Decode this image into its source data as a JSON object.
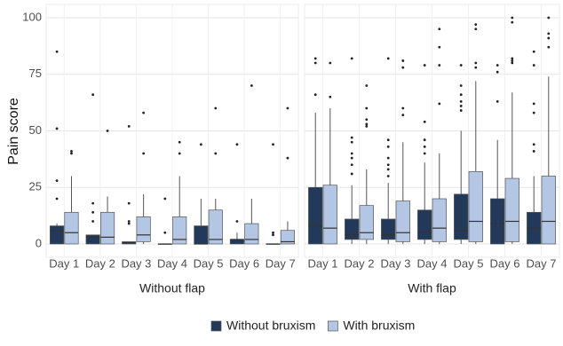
{
  "chart_data": [
    {
      "type": "boxplot",
      "xlabel": "Without flap",
      "ylabel": "Pain score",
      "legend": "bottom",
      "grid": true,
      "ylim": [
        0,
        100
      ],
      "yticks": [
        0,
        25,
        50,
        75,
        100
      ],
      "categories": [
        "Day 1",
        "Day 2",
        "Day 3",
        "Day 4",
        "Day 5",
        "Day 6",
        "Day 7"
      ],
      "series": [
        {
          "name": "Without bruxism",
          "color": "#22395a",
          "boxes": [
            {
              "low": 0,
              "q1": 0,
              "median": 6,
              "q3": 8,
              "high": 9,
              "outliers": [
                85,
                51,
                28,
                20
              ]
            },
            {
              "low": 0,
              "q1": 0,
              "median": 3,
              "q3": 4,
              "high": 4,
              "outliers": [
                66,
                18,
                14,
                10
              ]
            },
            {
              "low": 0,
              "q1": 0,
              "median": 0.5,
              "q3": 1,
              "high": 1,
              "outliers": [
                52,
                18,
                10,
                9
              ]
            },
            {
              "low": 0,
              "q1": 0,
              "median": 0,
              "q3": 0,
              "high": 0,
              "outliers": [
                20,
                5
              ]
            },
            {
              "low": 0,
              "q1": 0,
              "median": 0,
              "q3": 8,
              "high": 20,
              "outliers": [
                44
              ]
            },
            {
              "low": 0,
              "q1": 0,
              "median": 2,
              "q3": 2,
              "high": 5,
              "outliers": [
                44,
                10
              ]
            },
            {
              "low": 0,
              "q1": 0,
              "median": 0,
              "q3": 0,
              "high": 0,
              "outliers": [
                44,
                5,
                4
              ]
            }
          ]
        },
        {
          "name": "With bruxism",
          "color": "#b3c7e5",
          "boxes": [
            {
              "low": 0,
              "q1": 0,
              "median": 5,
              "q3": 14,
              "high": 30,
              "outliers": [
                41,
                40
              ]
            },
            {
              "low": 0,
              "q1": 0,
              "median": 3,
              "q3": 14,
              "high": 21,
              "outliers": [
                50
              ]
            },
            {
              "low": 0,
              "q1": 1,
              "median": 4,
              "q3": 12,
              "high": 22,
              "outliers": [
                58,
                40
              ]
            },
            {
              "low": 0,
              "q1": 0,
              "median": 2,
              "q3": 12,
              "high": 30,
              "outliers": [
                45,
                40
              ]
            },
            {
              "low": 0,
              "q1": 0,
              "median": 2,
              "q3": 15,
              "high": 20,
              "outliers": [
                60,
                40
              ]
            },
            {
              "low": 0,
              "q1": 0,
              "median": 2,
              "q3": 9,
              "high": 20,
              "outliers": [
                70
              ]
            },
            {
              "low": 0,
              "q1": 0,
              "median": 1,
              "q3": 6,
              "high": 10,
              "outliers": [
                60,
                38
              ]
            }
          ]
        }
      ]
    },
    {
      "type": "boxplot",
      "xlabel": "With flap",
      "grid": true,
      "ylim": [
        0,
        100
      ],
      "yticks": [
        0,
        25,
        50,
        75,
        100
      ],
      "categories": [
        "Day 1",
        "Day 2",
        "Day 3",
        "Day 4",
        "Day 5",
        "Day 6",
        "Day 7"
      ],
      "series": [
        {
          "name": "Without bruxism",
          "color": "#22395a",
          "boxes": [
            {
              "low": 0,
              "q1": 0,
              "median": 8,
              "q3": 25,
              "high": 58,
              "outliers": [
                82,
                80,
                66
              ]
            },
            {
              "low": 0,
              "q1": 2,
              "median": 4,
              "q3": 11,
              "high": 26,
              "outliers": [
                82,
                47,
                45,
                40,
                38,
                35,
                31
              ]
            },
            {
              "low": 0,
              "q1": 2,
              "median": 4,
              "q3": 11,
              "high": 27,
              "outliers": [
                82,
                46,
                43,
                38,
                35,
                33,
                30
              ]
            },
            {
              "low": 0,
              "q1": 2,
              "median": 5,
              "q3": 15,
              "high": 36,
              "outliers": [
                79,
                54,
                46,
                43,
                40
              ]
            },
            {
              "low": 0,
              "q1": 2,
              "median": 6,
              "q3": 22,
              "high": 50,
              "outliers": [
                79,
                70,
                66,
                63,
                61,
                59
              ]
            },
            {
              "low": 0,
              "q1": 0,
              "median": 9,
              "q3": 20,
              "high": 46,
              "outliers": [
                79,
                76,
                63
              ]
            },
            {
              "low": 0,
              "q1": 0,
              "median": 7,
              "q3": 14,
              "high": 30,
              "outliers": [
                85,
                79,
                62,
                58,
                44,
                41
              ]
            }
          ]
        },
        {
          "name": "With bruxism",
          "color": "#b3c7e5",
          "boxes": [
            {
              "low": 0,
              "q1": 0,
              "median": 7,
              "q3": 26,
              "high": 60,
              "outliers": [
                80,
                65
              ]
            },
            {
              "low": 0,
              "q1": 2,
              "median": 5,
              "q3": 17,
              "high": 33,
              "outliers": [
                70,
                60,
                55,
                53,
                52
              ]
            },
            {
              "low": 0,
              "q1": 1,
              "median": 5,
              "q3": 19,
              "high": 45,
              "outliers": [
                81,
                78,
                60,
                57
              ]
            },
            {
              "low": 0,
              "q1": 1,
              "median": 7,
              "q3": 20,
              "high": 40,
              "outliers": [
                95,
                87,
                79,
                62
              ]
            },
            {
              "low": 0,
              "q1": 1,
              "median": 10,
              "q3": 32,
              "high": 72,
              "outliers": [
                97,
                95,
                80,
                78
              ]
            },
            {
              "low": 0,
              "q1": 1,
              "median": 10,
              "q3": 29,
              "high": 67,
              "outliers": [
                100,
                98,
                82,
                81,
                80
              ]
            },
            {
              "low": 0,
              "q1": 0,
              "median": 10,
              "q3": 30,
              "high": 74,
              "outliers": [
                100,
                93,
                91,
                87
              ]
            }
          ]
        }
      ]
    }
  ]
}
